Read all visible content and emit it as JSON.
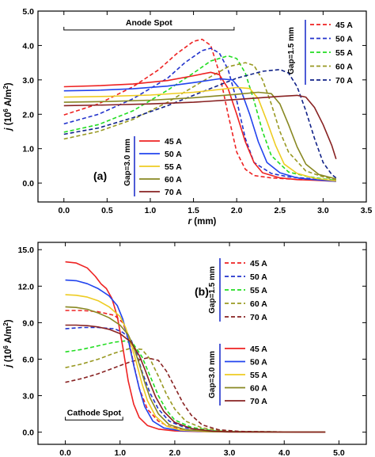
{
  "chart_data": [
    {
      "type": "line",
      "panel_label": "(a)",
      "xlabel": "r (mm)",
      "ylabel": "j (10^6 A/m^2)",
      "ylabel_parts": {
        "pre": "j",
        "mid": " (10",
        "sup1": "6",
        "unit": " A/m",
        "sup2": "2",
        "post": ")"
      },
      "xlim": [
        -0.3,
        3.5
      ],
      "ylim": [
        -0.55,
        5.0
      ],
      "xticks": [
        0.0,
        0.5,
        1.0,
        1.5,
        2.0,
        2.5,
        3.0,
        3.5
      ],
      "xtick_labels": [
        "0.0",
        "0.5",
        "1.0",
        "1.5",
        "2.0",
        "2.5",
        "3.0",
        "3.5"
      ],
      "yticks": [
        0.0,
        1.0,
        2.0,
        3.0,
        4.0,
        5.0
      ],
      "ytick_labels": [
        "0.0",
        "1.0",
        "2.0",
        "3.0",
        "4.0",
        "5.0"
      ],
      "annotation": {
        "text": "Anode Spot",
        "x_from": 0.0,
        "x_to": 1.97,
        "y": 4.45
      },
      "legend_groups": [
        {
          "gap_label": "Gap=1.5 mm",
          "style": "dashed",
          "position": "top-right",
          "entries": [
            "45 A",
            "50 A",
            "55 A",
            "60 A",
            "70 A"
          ]
        },
        {
          "gap_label": "Gap=3.0 mm",
          "style": "solid",
          "position": "lower-center",
          "entries": [
            "45 A",
            "50 A",
            "55 A",
            "60 A",
            "70 A"
          ]
        }
      ],
      "series": [
        {
          "current": "45 A",
          "gap": "1.5 mm",
          "style": "dashed",
          "color": "#ee2222",
          "x": [
            0.0,
            0.4,
            0.8,
            1.1,
            1.3,
            1.5,
            1.6,
            1.7,
            1.8,
            1.9,
            2.0,
            2.1,
            2.2,
            2.4,
            2.6,
            2.8,
            3.0,
            3.15
          ],
          "y": [
            1.98,
            2.3,
            2.8,
            3.3,
            3.75,
            4.12,
            4.18,
            4.0,
            3.2,
            2.0,
            0.9,
            0.4,
            0.22,
            0.15,
            0.12,
            0.1,
            0.08,
            0.06
          ]
        },
        {
          "current": "50 A",
          "gap": "1.5 mm",
          "style": "dashed",
          "color": "#2233cc",
          "x": [
            0.0,
            0.4,
            0.8,
            1.2,
            1.4,
            1.6,
            1.7,
            1.8,
            1.9,
            2.0,
            2.1,
            2.2,
            2.4,
            2.6,
            2.8,
            3.0,
            3.15
          ],
          "y": [
            1.72,
            2.0,
            2.45,
            3.05,
            3.5,
            3.85,
            3.92,
            3.78,
            3.3,
            2.4,
            1.3,
            0.6,
            0.28,
            0.18,
            0.14,
            0.1,
            0.07
          ]
        },
        {
          "current": "55 A",
          "gap": "1.5 mm",
          "style": "dashed",
          "color": "#22dd22",
          "x": [
            0.0,
            0.4,
            0.8,
            1.2,
            1.5,
            1.7,
            1.9,
            2.0,
            2.1,
            2.2,
            2.3,
            2.4,
            2.6,
            2.8,
            3.0,
            3.15
          ],
          "y": [
            1.48,
            1.7,
            2.1,
            2.7,
            3.2,
            3.55,
            3.7,
            3.62,
            3.2,
            2.4,
            1.5,
            0.8,
            0.32,
            0.2,
            0.12,
            0.08
          ]
        },
        {
          "current": "60 A",
          "gap": "1.5 mm",
          "style": "dashed",
          "color": "#999922",
          "x": [
            0.0,
            0.4,
            0.8,
            1.2,
            1.6,
            1.9,
            2.1,
            2.2,
            2.3,
            2.4,
            2.5,
            2.6,
            2.8,
            3.0,
            3.15
          ],
          "y": [
            1.28,
            1.5,
            1.85,
            2.35,
            2.95,
            3.38,
            3.5,
            3.42,
            3.0,
            2.3,
            1.5,
            0.9,
            0.35,
            0.18,
            0.1
          ]
        },
        {
          "current": "70 A",
          "gap": "1.5 mm",
          "style": "dashed",
          "color": "#112288",
          "x": [
            0.0,
            0.4,
            0.8,
            1.2,
            1.6,
            2.0,
            2.3,
            2.5,
            2.6,
            2.7,
            2.8,
            2.9,
            3.0,
            3.1,
            3.15
          ],
          "y": [
            1.42,
            1.6,
            1.9,
            2.25,
            2.65,
            3.05,
            3.25,
            3.3,
            3.2,
            2.8,
            2.1,
            1.3,
            0.6,
            0.25,
            0.15
          ]
        },
        {
          "current": "45 A",
          "gap": "3.0 mm",
          "style": "solid",
          "color": "#ee2222",
          "x": [
            0.0,
            0.4,
            0.8,
            1.2,
            1.5,
            1.7,
            1.8,
            1.9,
            2.0,
            2.1,
            2.2,
            2.3,
            2.5,
            2.7,
            2.9,
            3.15
          ],
          "y": [
            2.8,
            2.83,
            2.88,
            2.98,
            3.12,
            3.22,
            3.15,
            2.75,
            2.0,
            1.2,
            0.6,
            0.3,
            0.15,
            0.1,
            0.08,
            0.05
          ]
        },
        {
          "current": "50 A",
          "gap": "3.0 mm",
          "style": "solid",
          "color": "#2244ee",
          "x": [
            0.0,
            0.4,
            0.8,
            1.2,
            1.5,
            1.8,
            1.95,
            2.05,
            2.15,
            2.25,
            2.35,
            2.5,
            2.7,
            2.9,
            3.15
          ],
          "y": [
            2.68,
            2.7,
            2.74,
            2.82,
            2.92,
            3.03,
            3.0,
            2.7,
            2.0,
            1.2,
            0.6,
            0.3,
            0.15,
            0.1,
            0.05
          ]
        },
        {
          "current": "55 A",
          "gap": "3.0 mm",
          "style": "solid",
          "color": "#eecc22",
          "x": [
            0.0,
            0.5,
            1.0,
            1.5,
            1.8,
            2.0,
            2.15,
            2.25,
            2.35,
            2.45,
            2.55,
            2.7,
            2.9,
            3.15
          ],
          "y": [
            2.5,
            2.52,
            2.56,
            2.64,
            2.72,
            2.78,
            2.75,
            2.45,
            1.8,
            1.1,
            0.55,
            0.28,
            0.14,
            0.06
          ]
        },
        {
          "current": "60 A",
          "gap": "3.0 mm",
          "style": "solid",
          "color": "#888822",
          "x": [
            0.0,
            0.5,
            1.0,
            1.5,
            2.0,
            2.25,
            2.4,
            2.5,
            2.6,
            2.7,
            2.8,
            2.95,
            3.15
          ],
          "y": [
            2.35,
            2.37,
            2.41,
            2.48,
            2.58,
            2.64,
            2.6,
            2.3,
            1.7,
            1.05,
            0.55,
            0.25,
            0.12
          ]
        },
        {
          "current": "70 A",
          "gap": "3.0 mm",
          "style": "solid",
          "color": "#882222",
          "x": [
            0.0,
            0.5,
            1.0,
            1.5,
            2.0,
            2.5,
            2.7,
            2.8,
            2.9,
            3.0,
            3.1,
            3.15
          ],
          "y": [
            2.25,
            2.27,
            2.3,
            2.35,
            2.43,
            2.52,
            2.55,
            2.5,
            2.2,
            1.7,
            1.1,
            0.7
          ]
        }
      ]
    },
    {
      "type": "line",
      "panel_label": "(b)",
      "xlabel": "r (mm)",
      "ylabel": "j (10^6 A/m^2)",
      "ylabel_parts": {
        "pre": "j",
        "mid": " (10",
        "sup1": "6",
        "unit": " A/m",
        "sup2": "2",
        "post": ")"
      },
      "xlim": [
        -0.5,
        5.5
      ],
      "ylim": [
        -1.0,
        15.6
      ],
      "xticks": [
        0.0,
        1.0,
        2.0,
        3.0,
        4.0,
        5.0
      ],
      "xtick_labels": [
        "0.0",
        "1.0",
        "2.0",
        "3.0",
        "4.0",
        "5.0"
      ],
      "yticks": [
        0.0,
        3.0,
        6.0,
        9.0,
        12.0,
        15.0
      ],
      "ytick_labels": [
        "0.0",
        "3.0",
        "6.0",
        "9.0",
        "12.0",
        "15.0"
      ],
      "annotation": {
        "text": "Cathode Spot",
        "x_from": 0.0,
        "x_to": 1.05,
        "y": 1.0
      },
      "legend_groups": [
        {
          "gap_label": "Gap=1.5 mm",
          "style": "dashed",
          "position": "center-right",
          "entries": [
            "45 A",
            "50 A",
            "55 A",
            "60 A",
            "70 A"
          ]
        },
        {
          "gap_label": "Gap=3.0 mm",
          "style": "solid",
          "position": "lower-right",
          "entries": [
            "45 A",
            "50 A",
            "55 A",
            "60 A",
            "70 A"
          ]
        }
      ],
      "series": [
        {
          "current": "45 A",
          "gap": "1.5 mm",
          "style": "dashed",
          "color": "#ee2222",
          "x": [
            0.0,
            0.3,
            0.6,
            0.9,
            1.05,
            1.15,
            1.25,
            1.35,
            1.5,
            1.7,
            1.9,
            2.2,
            2.6,
            3.0,
            4.0,
            4.75
          ],
          "y": [
            10.0,
            10.0,
            9.9,
            9.6,
            9.0,
            7.8,
            5.6,
            3.6,
            1.9,
            0.9,
            0.45,
            0.2,
            0.08,
            0.04,
            0.02,
            0.0
          ]
        },
        {
          "current": "50 A",
          "gap": "1.5 mm",
          "style": "dashed",
          "color": "#2233cc",
          "x": [
            0.0,
            0.3,
            0.6,
            0.9,
            1.05,
            1.2,
            1.3,
            1.4,
            1.55,
            1.7,
            1.9,
            2.2,
            2.6,
            3.0,
            4.0,
            4.75
          ],
          "y": [
            8.5,
            8.6,
            8.6,
            8.5,
            8.2,
            7.6,
            6.5,
            5.0,
            3.2,
            1.9,
            0.9,
            0.35,
            0.12,
            0.05,
            0.02,
            0.0
          ]
        },
        {
          "current": "55 A",
          "gap": "1.5 mm",
          "style": "dashed",
          "color": "#22dd22",
          "x": [
            0.0,
            0.3,
            0.6,
            0.9,
            1.1,
            1.25,
            1.4,
            1.55,
            1.7,
            1.85,
            2.0,
            2.3,
            2.7,
            3.0,
            4.0,
            4.75
          ],
          "y": [
            6.6,
            6.8,
            7.1,
            7.4,
            7.5,
            7.2,
            6.2,
            4.6,
            3.0,
            1.8,
            1.0,
            0.4,
            0.12,
            0.05,
            0.02,
            0.0
          ]
        },
        {
          "current": "60 A",
          "gap": "1.5 mm",
          "style": "dashed",
          "color": "#999922",
          "x": [
            0.0,
            0.3,
            0.6,
            0.9,
            1.2,
            1.4,
            1.55,
            1.7,
            1.85,
            2.0,
            2.2,
            2.5,
            2.9,
            3.2,
            4.0,
            4.75
          ],
          "y": [
            5.3,
            5.6,
            6.0,
            6.5,
            6.9,
            6.8,
            6.0,
            4.6,
            3.1,
            1.9,
            0.9,
            0.35,
            0.1,
            0.05,
            0.02,
            0.0
          ]
        },
        {
          "current": "70 A",
          "gap": "1.5 mm",
          "style": "dashed",
          "color": "#882222",
          "x": [
            0.0,
            0.3,
            0.6,
            0.9,
            1.2,
            1.5,
            1.7,
            1.85,
            2.0,
            2.15,
            2.3,
            2.5,
            2.8,
            3.2,
            4.0,
            4.75
          ],
          "y": [
            4.1,
            4.4,
            4.8,
            5.3,
            5.8,
            6.1,
            5.9,
            5.0,
            3.7,
            2.4,
            1.4,
            0.6,
            0.2,
            0.06,
            0.02,
            0.0
          ]
        },
        {
          "current": "45 A",
          "gap": "3.0 mm",
          "style": "solid",
          "color": "#ee2222",
          "x": [
            0.0,
            0.2,
            0.4,
            0.55,
            0.65,
            0.75,
            0.85,
            0.95,
            1.05,
            1.15,
            1.25,
            1.35,
            1.5,
            1.7,
            2.0,
            2.5,
            3.0,
            4.0,
            4.75
          ],
          "y": [
            14.0,
            13.9,
            13.5,
            12.8,
            12.2,
            11.8,
            11.0,
            9.5,
            7.0,
            4.2,
            2.3,
            1.2,
            0.55,
            0.25,
            0.1,
            0.04,
            0.02,
            0.01,
            0.0
          ]
        },
        {
          "current": "50 A",
          "gap": "3.0 mm",
          "style": "solid",
          "color": "#2244ee",
          "x": [
            0.0,
            0.2,
            0.4,
            0.6,
            0.8,
            0.95,
            1.05,
            1.15,
            1.25,
            1.35,
            1.45,
            1.6,
            1.8,
            2.1,
            2.6,
            3.0,
            4.0,
            4.75
          ],
          "y": [
            12.5,
            12.45,
            12.2,
            11.8,
            11.2,
            10.4,
            9.3,
            7.6,
            5.5,
            3.6,
            2.1,
            0.9,
            0.35,
            0.12,
            0.04,
            0.02,
            0.01,
            0.0
          ]
        },
        {
          "current": "55 A",
          "gap": "3.0 mm",
          "style": "solid",
          "color": "#eecc22",
          "x": [
            0.0,
            0.2,
            0.4,
            0.6,
            0.8,
            1.0,
            1.1,
            1.2,
            1.3,
            1.4,
            1.5,
            1.65,
            1.85,
            2.1,
            2.6,
            3.0,
            4.0,
            4.75
          ],
          "y": [
            11.3,
            11.25,
            11.1,
            10.8,
            10.3,
            9.5,
            8.6,
            7.3,
            5.7,
            4.0,
            2.6,
            1.3,
            0.5,
            0.18,
            0.05,
            0.02,
            0.01,
            0.0
          ]
        },
        {
          "current": "60 A",
          "gap": "3.0 mm",
          "style": "solid",
          "color": "#888822",
          "x": [
            0.0,
            0.2,
            0.4,
            0.6,
            0.8,
            1.0,
            1.15,
            1.25,
            1.35,
            1.45,
            1.55,
            1.7,
            1.9,
            2.2,
            2.7,
            3.0,
            4.0,
            4.75
          ],
          "y": [
            10.3,
            10.25,
            10.1,
            9.8,
            9.4,
            8.8,
            8.0,
            7.0,
            5.6,
            4.1,
            2.8,
            1.5,
            0.6,
            0.2,
            0.05,
            0.02,
            0.01,
            0.0
          ]
        },
        {
          "current": "70 A",
          "gap": "3.0 mm",
          "style": "solid",
          "color": "#882222",
          "x": [
            0.0,
            0.2,
            0.4,
            0.6,
            0.8,
            1.0,
            1.2,
            1.35,
            1.45,
            1.55,
            1.65,
            1.8,
            2.0,
            2.3,
            2.7,
            3.0,
            4.0,
            4.75
          ],
          "y": [
            8.8,
            8.8,
            8.75,
            8.65,
            8.45,
            8.1,
            7.4,
            6.3,
            5.2,
            4.0,
            2.9,
            1.7,
            0.8,
            0.3,
            0.08,
            0.03,
            0.01,
            0.0
          ]
        }
      ]
    }
  ]
}
